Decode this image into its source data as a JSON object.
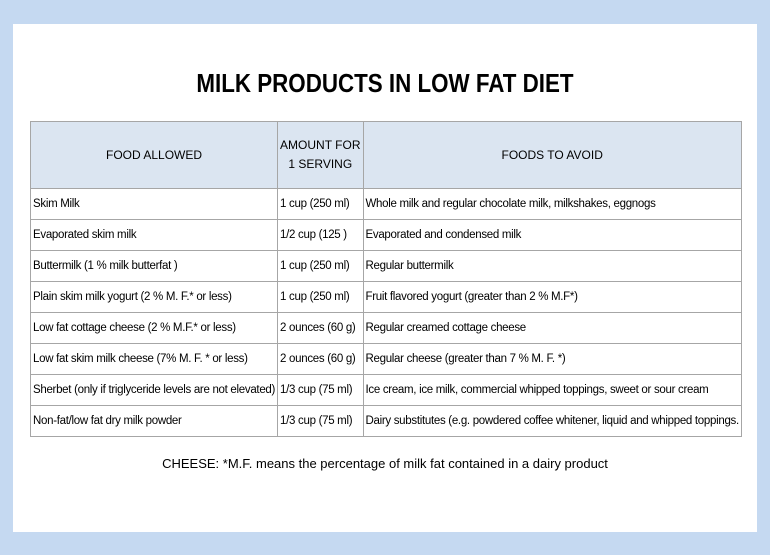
{
  "title": "MILK PRODUCTS IN LOW FAT DIET",
  "table": {
    "headers": {
      "food_allowed": "FOOD ALLOWED",
      "amount_line1": "AMOUNT FOR",
      "amount_line2": "1 SERVING",
      "foods_to_avoid": "FOODS TO AVOID"
    },
    "rows": [
      {
        "food": "Skim Milk",
        "amount": "1 cup (250 ml)",
        "avoid": "Whole milk and regular chocolate milk, milkshakes, eggnogs"
      },
      {
        "food": "Evaporated skim milk",
        "amount": "1/2 cup (125 )",
        "avoid": "Evaporated and condensed milk"
      },
      {
        "food": "Buttermilk (1 % milk butterfat )",
        "amount": "1 cup (250 ml)",
        "avoid": "Regular buttermilk"
      },
      {
        "food": "Plain skim milk yogurt (2 % M. F.* or less)",
        "amount": "1 cup (250 ml)",
        "avoid": "Fruit flavored yogurt (greater than 2 % M.F*)"
      },
      {
        "food": "Low fat cottage cheese (2 % M.F.* or less)",
        "amount": "2 ounces (60 g)",
        "avoid": "Regular creamed cottage cheese"
      },
      {
        "food": "Low fat skim milk cheese (7% M. F. * or less)",
        "amount": "2 ounces (60 g)",
        "avoid": "Regular cheese (greater than 7 % M. F. *)"
      },
      {
        "food": "Sherbet (only if triglyceride levels are not elevated)",
        "amount": "1/3 cup (75 ml)",
        "avoid": "Ice cream, ice milk, commercial whipped toppings, sweet or sour cream"
      },
      {
        "food": "Non-fat/low fat dry milk powder",
        "amount": "1/3 cup (75 ml)",
        "avoid": "Dairy substitutes (e.g. powdered coffee whitener, liquid and  whipped toppings."
      }
    ]
  },
  "footnote": {
    "label": "CHEESE:",
    "text": " *M.F. means the percentage of milk fat contained in a dairy product"
  }
}
